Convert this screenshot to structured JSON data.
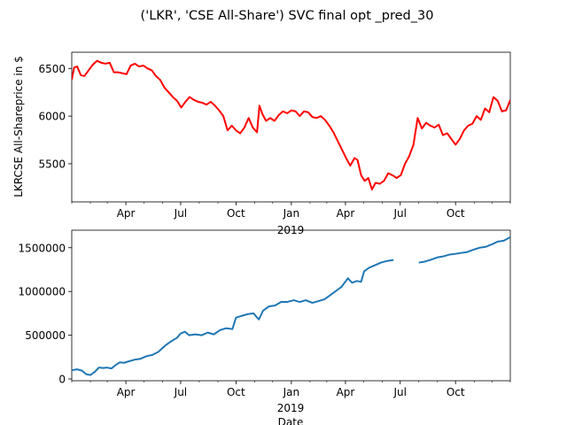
{
  "chart_data": [
    {
      "type": "line",
      "title": "('LKR', 'CSE All-Share') SVC final opt _pred_30",
      "ylabel": "LKRCSE All-Shareprice in $",
      "xlabel": "2019",
      "xlim": [
        "2018-01-01",
        "2019-12-31"
      ],
      "ylim": [
        5100,
        6670
      ],
      "yticks": [
        5500,
        6000,
        6500
      ],
      "xtick_labels": [
        "Apr",
        "Jul",
        "Oct",
        "Jan",
        "Apr",
        "Jul",
        "Oct"
      ],
      "color": "#ff0000",
      "series": [
        {
          "points": [
            [
              "2018-01-01",
              6380
            ],
            [
              "2018-01-05",
              6510
            ],
            [
              "2018-01-10",
              6520
            ],
            [
              "2018-01-16",
              6430
            ],
            [
              "2018-01-22",
              6420
            ],
            [
              "2018-01-29",
              6480
            ],
            [
              "2018-02-05",
              6540
            ],
            [
              "2018-02-12",
              6580
            ],
            [
              "2018-02-19",
              6560
            ],
            [
              "2018-02-26",
              6550
            ],
            [
              "2018-03-05",
              6560
            ],
            [
              "2018-03-12",
              6460
            ],
            [
              "2018-03-19",
              6460
            ],
            [
              "2018-03-26",
              6450
            ],
            [
              "2018-04-02",
              6440
            ],
            [
              "2018-04-09",
              6530
            ],
            [
              "2018-04-16",
              6550
            ],
            [
              "2018-04-23",
              6520
            ],
            [
              "2018-04-30",
              6530
            ],
            [
              "2018-05-07",
              6500
            ],
            [
              "2018-05-14",
              6480
            ],
            [
              "2018-05-21",
              6420
            ],
            [
              "2018-05-28",
              6380
            ],
            [
              "2018-06-04",
              6300
            ],
            [
              "2018-06-11",
              6250
            ],
            [
              "2018-06-18",
              6200
            ],
            [
              "2018-06-25",
              6160
            ],
            [
              "2018-07-02",
              6090
            ],
            [
              "2018-07-09",
              6150
            ],
            [
              "2018-07-16",
              6200
            ],
            [
              "2018-07-23",
              6170
            ],
            [
              "2018-07-30",
              6150
            ],
            [
              "2018-08-06",
              6140
            ],
            [
              "2018-08-13",
              6120
            ],
            [
              "2018-08-20",
              6150
            ],
            [
              "2018-08-27",
              6110
            ],
            [
              "2018-09-03",
              6060
            ],
            [
              "2018-09-10",
              6000
            ],
            [
              "2018-09-17",
              5850
            ],
            [
              "2018-09-24",
              5900
            ],
            [
              "2018-10-01",
              5850
            ],
            [
              "2018-10-08",
              5820
            ],
            [
              "2018-10-15",
              5880
            ],
            [
              "2018-10-22",
              5980
            ],
            [
              "2018-10-29",
              5880
            ],
            [
              "2018-11-05",
              5830
            ],
            [
              "2018-11-09",
              6110
            ],
            [
              "2018-11-14",
              6020
            ],
            [
              "2018-11-20",
              5950
            ],
            [
              "2018-11-27",
              5980
            ],
            [
              "2018-12-04",
              5950
            ],
            [
              "2018-12-11",
              6010
            ],
            [
              "2018-12-18",
              6050
            ],
            [
              "2018-12-25",
              6030
            ],
            [
              "2019-01-01",
              6060
            ],
            [
              "2019-01-08",
              6050
            ],
            [
              "2019-01-15",
              6000
            ],
            [
              "2019-01-22",
              6050
            ],
            [
              "2019-01-29",
              6040
            ],
            [
              "2019-02-05",
              5990
            ],
            [
              "2019-02-12",
              5980
            ],
            [
              "2019-02-19",
              6000
            ],
            [
              "2019-02-26",
              5960
            ],
            [
              "2019-03-05",
              5900
            ],
            [
              "2019-03-12",
              5830
            ],
            [
              "2019-03-19",
              5740
            ],
            [
              "2019-03-26",
              5650
            ],
            [
              "2019-04-02",
              5560
            ],
            [
              "2019-04-09",
              5480
            ],
            [
              "2019-04-16",
              5560
            ],
            [
              "2019-04-21",
              5540
            ],
            [
              "2019-04-27",
              5380
            ],
            [
              "2019-05-03",
              5320
            ],
            [
              "2019-05-09",
              5350
            ],
            [
              "2019-05-15",
              5230
            ],
            [
              "2019-05-21",
              5300
            ],
            [
              "2019-05-28",
              5290
            ],
            [
              "2019-06-04",
              5320
            ],
            [
              "2019-06-11",
              5400
            ],
            [
              "2019-06-18",
              5380
            ],
            [
              "2019-06-25",
              5350
            ],
            [
              "2019-07-02",
              5380
            ],
            [
              "2019-07-09",
              5500
            ],
            [
              "2019-07-16",
              5580
            ],
            [
              "2019-07-23",
              5700
            ],
            [
              "2019-07-30",
              5980
            ],
            [
              "2019-08-06",
              5870
            ],
            [
              "2019-08-13",
              5930
            ],
            [
              "2019-08-20",
              5900
            ],
            [
              "2019-08-27",
              5880
            ],
            [
              "2019-09-03",
              5910
            ],
            [
              "2019-09-10",
              5800
            ],
            [
              "2019-09-17",
              5820
            ],
            [
              "2019-09-24",
              5760
            ],
            [
              "2019-10-01",
              5700
            ],
            [
              "2019-10-08",
              5760
            ],
            [
              "2019-10-15",
              5850
            ],
            [
              "2019-10-22",
              5900
            ],
            [
              "2019-10-29",
              5920
            ],
            [
              "2019-11-05",
              6000
            ],
            [
              "2019-11-12",
              5960
            ],
            [
              "2019-11-19",
              6080
            ],
            [
              "2019-11-26",
              6040
            ],
            [
              "2019-12-03",
              6200
            ],
            [
              "2019-12-10",
              6160
            ],
            [
              "2019-12-17",
              6050
            ],
            [
              "2019-12-24",
              6060
            ],
            [
              "2019-12-31",
              6170
            ]
          ]
        }
      ]
    },
    {
      "type": "line",
      "ylabel": "",
      "xlabel": "2019",
      "xlabel2": "Date",
      "xlim": [
        "2018-01-01",
        "2019-12-31"
      ],
      "ylim": [
        -20000,
        1700000
      ],
      "yticks": [
        0,
        500000,
        1000000,
        1500000
      ],
      "xtick_labels": [
        "Apr",
        "Jul",
        "Oct",
        "Jan",
        "Apr",
        "Jul",
        "Oct"
      ],
      "color": "#1f77b4",
      "series": [
        {
          "segments": [
            [
              [
                "2018-01-01",
                100000
              ],
              [
                "2018-01-10",
                110000
              ],
              [
                "2018-01-18",
                95000
              ],
              [
                "2018-01-25",
                55000
              ],
              [
                "2018-02-01",
                45000
              ],
              [
                "2018-02-08",
                80000
              ],
              [
                "2018-02-15",
                130000
              ],
              [
                "2018-02-22",
                125000
              ],
              [
                "2018-03-01",
                130000
              ],
              [
                "2018-03-08",
                120000
              ],
              [
                "2018-03-15",
                160000
              ],
              [
                "2018-03-22",
                190000
              ],
              [
                "2018-03-29",
                185000
              ],
              [
                "2018-04-05",
                200000
              ],
              [
                "2018-04-15",
                220000
              ],
              [
                "2018-04-25",
                230000
              ],
              [
                "2018-05-05",
                260000
              ],
              [
                "2018-05-15",
                275000
              ],
              [
                "2018-05-25",
                310000
              ],
              [
                "2018-06-05",
                380000
              ],
              [
                "2018-06-15",
                430000
              ],
              [
                "2018-06-25",
                470000
              ],
              [
                "2018-07-01",
                520000
              ],
              [
                "2018-07-08",
                540000
              ],
              [
                "2018-07-15",
                500000
              ],
              [
                "2018-07-25",
                510000
              ],
              [
                "2018-08-05",
                500000
              ],
              [
                "2018-08-15",
                530000
              ],
              [
                "2018-08-25",
                510000
              ],
              [
                "2018-09-05",
                560000
              ],
              [
                "2018-09-15",
                580000
              ],
              [
                "2018-09-25",
                570000
              ],
              [
                "2018-10-01",
                700000
              ],
              [
                "2018-10-10",
                720000
              ],
              [
                "2018-10-20",
                740000
              ],
              [
                "2018-10-30",
                750000
              ],
              [
                "2018-11-08",
                680000
              ],
              [
                "2018-11-15",
                780000
              ],
              [
                "2018-11-25",
                830000
              ],
              [
                "2018-12-05",
                840000
              ],
              [
                "2018-12-15",
                880000
              ],
              [
                "2018-12-25",
                880000
              ],
              [
                "2019-01-05",
                900000
              ],
              [
                "2019-01-15",
                880000
              ],
              [
                "2019-01-25",
                900000
              ],
              [
                "2019-02-05",
                870000
              ],
              [
                "2019-02-15",
                890000
              ],
              [
                "2019-02-25",
                910000
              ],
              [
                "2019-03-05",
                950000
              ],
              [
                "2019-03-15",
                1000000
              ],
              [
                "2019-03-25",
                1050000
              ],
              [
                "2019-04-05",
                1150000
              ],
              [
                "2019-04-12",
                1100000
              ],
              [
                "2019-04-20",
                1120000
              ],
              [
                "2019-04-27",
                1110000
              ],
              [
                "2019-05-02",
                1230000
              ],
              [
                "2019-05-10",
                1270000
              ],
              [
                "2019-05-20",
                1300000
              ],
              [
                "2019-05-30",
                1330000
              ],
              [
                "2019-06-10",
                1350000
              ],
              [
                "2019-06-20",
                1360000
              ]
            ],
            [
              [
                "2019-08-01",
                1330000
              ],
              [
                "2019-08-10",
                1340000
              ],
              [
                "2019-08-20",
                1360000
              ],
              [
                "2019-09-01",
                1390000
              ],
              [
                "2019-09-10",
                1400000
              ],
              [
                "2019-09-20",
                1420000
              ],
              [
                "2019-10-01",
                1430000
              ],
              [
                "2019-10-10",
                1440000
              ],
              [
                "2019-10-20",
                1450000
              ],
              [
                "2019-11-01",
                1480000
              ],
              [
                "2019-11-10",
                1500000
              ],
              [
                "2019-11-20",
                1510000
              ],
              [
                "2019-12-01",
                1540000
              ],
              [
                "2019-12-10",
                1570000
              ],
              [
                "2019-12-20",
                1580000
              ],
              [
                "2019-12-31",
                1620000
              ]
            ]
          ]
        }
      ]
    }
  ]
}
